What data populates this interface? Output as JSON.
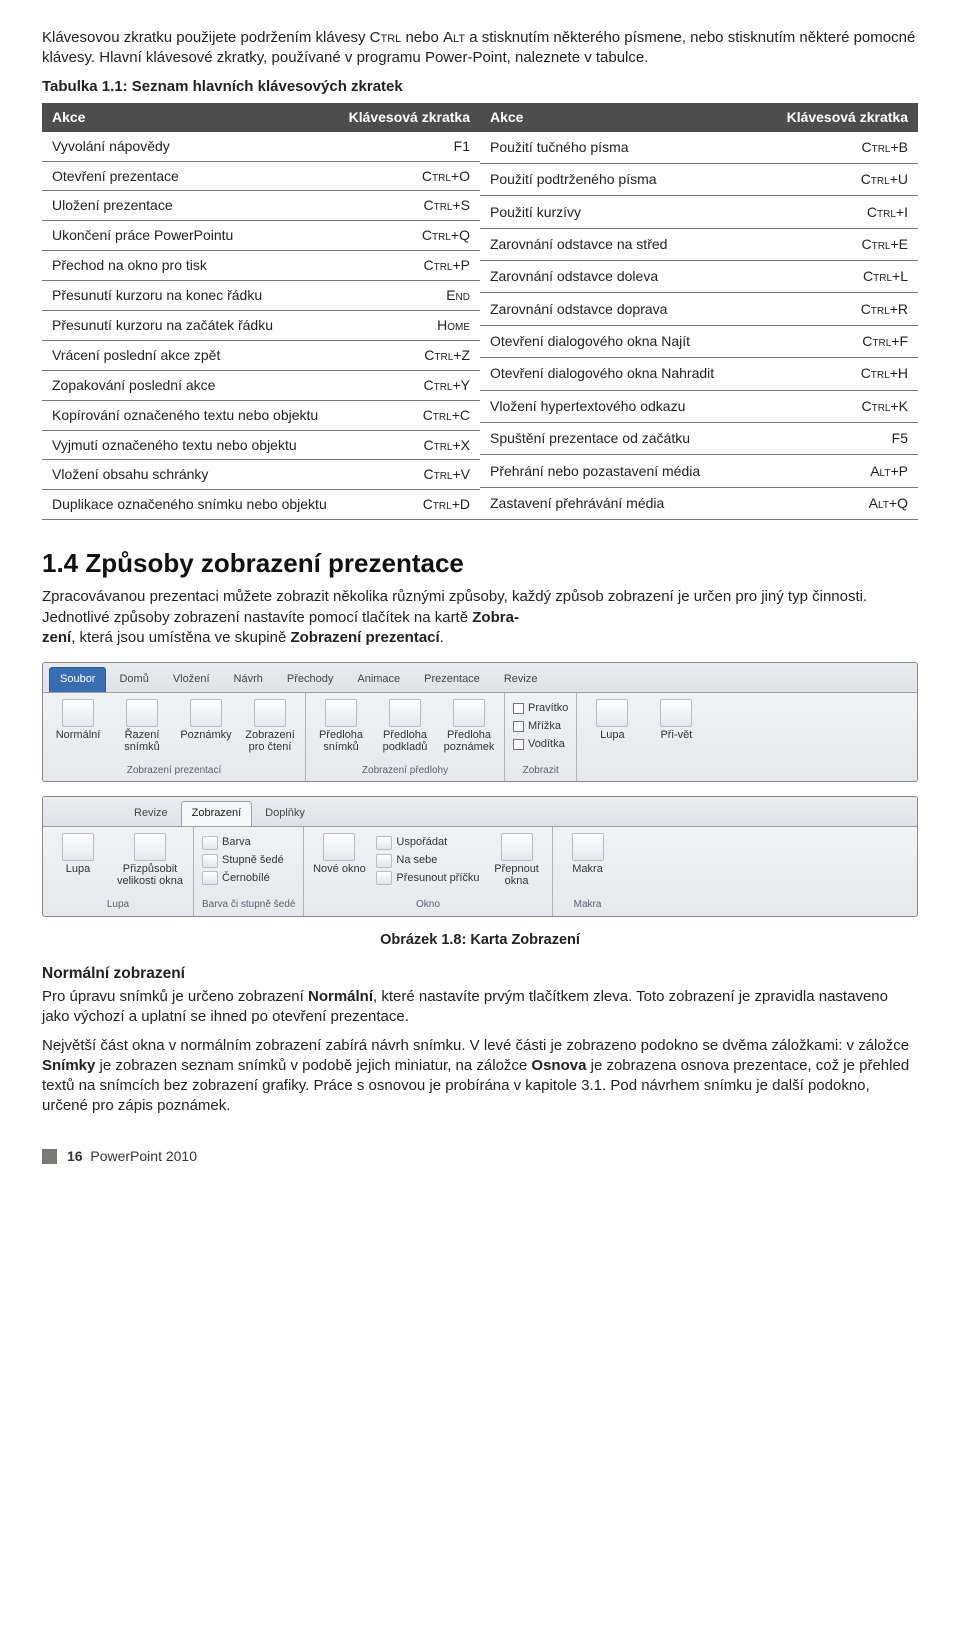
{
  "intro": {
    "p1a": "Klávesovou zkratku použijete podržením klávesy ",
    "p1b": " nebo ",
    "p1c": " a stisknutím některého písmene, nebo stisknutím některé pomocné klávesy. Hlavní klávesové zkratky, používané v programu Power-Point, naleznete v tabulce.",
    "key_ctrl": "Ctrl",
    "key_alt": "Alt"
  },
  "table": {
    "caption": "Tabulka 1.1: Seznam hlavních klávesových zkratek",
    "h_action": "Akce",
    "h_shortcut": "Klávesová zkratka",
    "left": [
      {
        "a": "Vyvolání nápovědy",
        "k": "F1"
      },
      {
        "a": "Otevření prezentace",
        "k": "Ctrl+O"
      },
      {
        "a": "Uložení prezentace",
        "k": "Ctrl+S"
      },
      {
        "a": "Ukončení práce PowerPointu",
        "k": "Ctrl+Q"
      },
      {
        "a": "Přechod na okno pro tisk",
        "k": "Ctrl+P"
      },
      {
        "a": "Přesunutí kurzoru na konec řádku",
        "k": "End"
      },
      {
        "a": "Přesunutí kurzoru na začátek řádku",
        "k": "Home"
      },
      {
        "a": "Vrácení poslední akce zpět",
        "k": "Ctrl+Z"
      },
      {
        "a": "Zopakování poslední akce",
        "k": "Ctrl+Y"
      },
      {
        "a": "Kopírování označeného textu nebo objektu",
        "k": "Ctrl+C"
      },
      {
        "a": "Vyjmutí označeného textu nebo objektu",
        "k": "Ctrl+X"
      },
      {
        "a": "Vložení obsahu schránky",
        "k": "Ctrl+V"
      },
      {
        "a": "Duplikace označeného snímku nebo objektu",
        "k": "Ctrl+D"
      }
    ],
    "right": [
      {
        "a": "Použití tučného písma",
        "k": "Ctrl+B"
      },
      {
        "a": "Použití podtrženého písma",
        "k": "Ctrl+U"
      },
      {
        "a": "Použití kurzívy",
        "k": "Ctrl+I"
      },
      {
        "a": "Zarovnání odstavce na střed",
        "k": "Ctrl+E"
      },
      {
        "a": "Zarovnání odstavce doleva",
        "k": "Ctrl+L"
      },
      {
        "a": "Zarovnání odstavce doprava",
        "k": "Ctrl+R"
      },
      {
        "a": "Otevření dialogového okna Najít",
        "k": "Ctrl+F"
      },
      {
        "a": "Otevření dialogového okna Nahradit",
        "k": "Ctrl+H"
      },
      {
        "a": "Vložení hypertextového odkazu",
        "k": "Ctrl+K"
      },
      {
        "a": "Spuštění prezentace od začátku",
        "k": "F5"
      },
      {
        "a": "Přehrání nebo pozastavení média",
        "k": "Alt+P"
      },
      {
        "a": "Zastavení přehrávání média",
        "k": "Alt+Q"
      }
    ]
  },
  "section": {
    "heading": "1.4 Způsoby zobrazení prezentace",
    "p1": "Zpracovávanou prezentaci můžete zobrazit několika různými způsoby, každý způsob zobrazení je určen pro jiný typ činnosti. Jednotlivé způsoby zobrazení nastavíte pomocí tlačítek na kartě Zobrazení, která jsou umístěna ve skupině Zobrazení prezentací.",
    "p1_bold1": "Zobra-zení",
    "p1_bold2": "Zobrazení prezentací"
  },
  "ribbon1": {
    "tabs": [
      "Soubor",
      "Domů",
      "Vložení",
      "Návrh",
      "Přechody",
      "Animace",
      "Prezentace",
      "Revize"
    ],
    "groups": {
      "g1": {
        "title": "Zobrazení prezentací",
        "btns": [
          "Normální",
          "Řazení snímků",
          "Poznámky",
          "Zobrazení pro čtení"
        ]
      },
      "g2": {
        "title": "Zobrazení předlohy",
        "btns": [
          "Předloha snímků",
          "Předloha podkladů",
          "Předloha poznámek"
        ]
      },
      "g3": {
        "title": "Zobrazit",
        "chks": [
          "Pravítko",
          "Mřížka",
          "Vodítka"
        ]
      },
      "g4": {
        "title": "Lupa",
        "btns": [
          "Lupa",
          "Při-vět"
        ]
      }
    }
  },
  "ribbon2": {
    "tabs_left": [
      "Revize",
      "Zobrazení",
      "Doplňky"
    ],
    "groups": {
      "g1": {
        "title": "Lupa",
        "btns": [
          "Lupa",
          "Přizpůsobit velikosti okna"
        ]
      },
      "g2": {
        "title": "Barva či stupně šedé",
        "chks": [
          "Barva",
          "Stupně šedé",
          "Černobílé"
        ]
      },
      "g3": {
        "title": "Okno",
        "btn": "Nové okno",
        "chks": [
          "Uspořádat",
          "Na sebe",
          "Přesunout příčku"
        ],
        "btn2": "Přepnout okna"
      },
      "g4": {
        "title": "Makra",
        "btn": "Makra"
      }
    }
  },
  "figure_caption": "Obrázek 1.8: Karta Zobrazení",
  "subsection": {
    "heading": "Normální zobrazení",
    "p1a": "Pro úpravu snímků je určeno zobrazení ",
    "p1b": ", které nastavíte prvým tlačítkem zleva. Toto zobrazení je zpravidla nastaveno jako výchozí a uplatní se ihned po otevření prezentace.",
    "bold1": "Normální",
    "p2a": "Největší část okna v normálním zobrazení zabírá návrh snímku. V levé části je zobrazeno podokno se dvěma záložkami: v záložce ",
    "p2b": " je zobrazen seznam snímků v podobě jejich miniatur, na záložce ",
    "p2c": " je zobrazena osnova prezentace, což je přehled textů na snímcích bez zobrazení grafiky. Práce s osnovou je probírána v kapitole 3.1. Pod návrhem snímku je další podokno, určené pro zápis poznámek.",
    "bold2": "Snímky",
    "bold3": "Osnova"
  },
  "footer": {
    "page": "16",
    "title": "PowerPoint 2010"
  }
}
